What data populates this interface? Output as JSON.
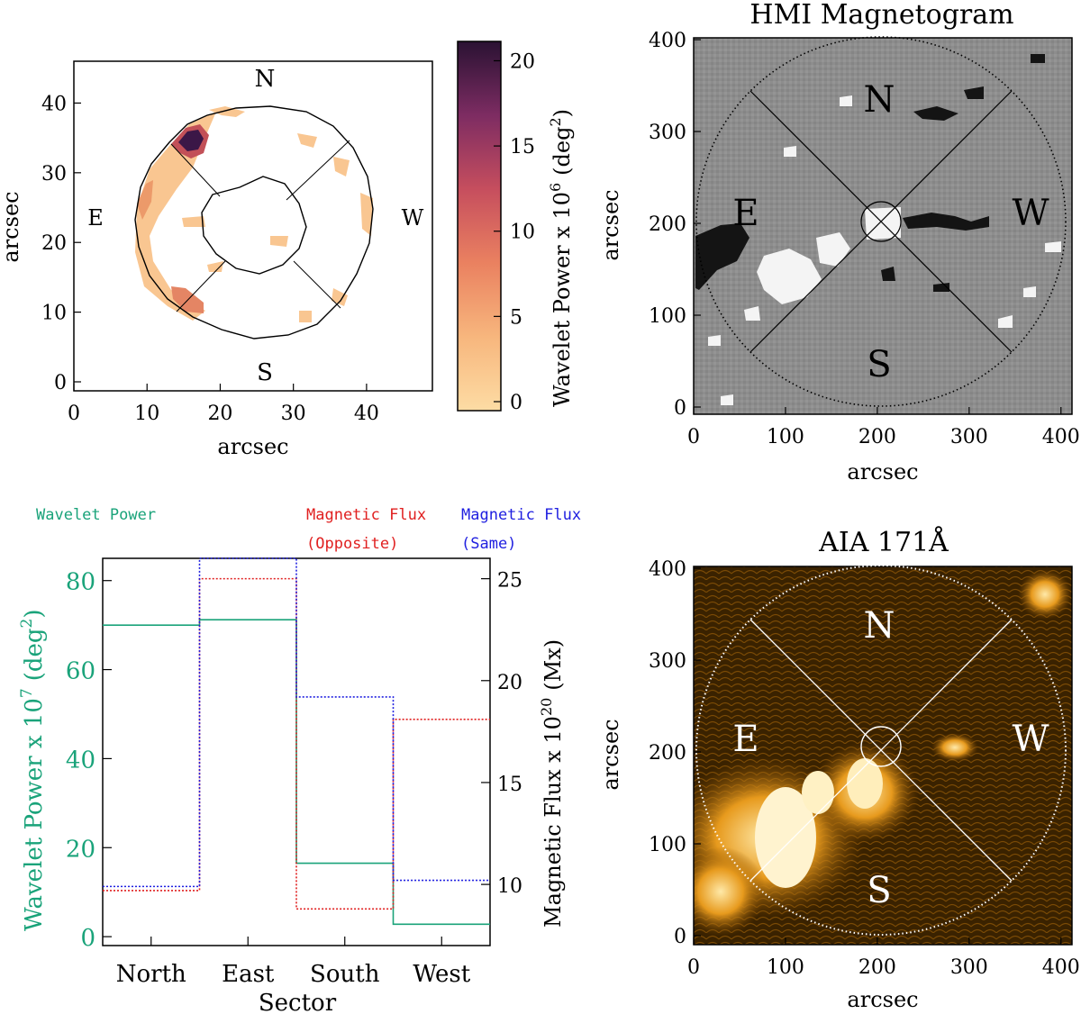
{
  "colors": {
    "wavelet": "#1aa37a",
    "flux_opposite": "#e02020",
    "flux_same": "#2020e0",
    "aia_dark": "#2a1800",
    "aia_bright": "#ffd27a"
  },
  "panel_a": {
    "xlabel": "arcsec",
    "ylabel": "arcsec",
    "x_ticks": [
      "0",
      "10",
      "20",
      "30",
      "40"
    ],
    "y_ticks": [
      "0",
      "10",
      "20",
      "30",
      "40"
    ],
    "compass": {
      "n": "N",
      "s": "S",
      "e": "E",
      "w": "W"
    },
    "colorbar_title": "Wavelet Power x 10",
    "colorbar_exp": "6",
    "colorbar_unit": "(deg",
    "colorbar_unit_exp": "2",
    "colorbar_unit_close": ")",
    "colorbar_ticks": [
      "0",
      "5",
      "10",
      "15",
      "20"
    ]
  },
  "panel_b": {
    "title": "HMI Magnetogram",
    "xlabel": "arcsec",
    "ylabel": "arcsec",
    "x_ticks": [
      "0",
      "100",
      "200",
      "300",
      "400"
    ],
    "y_ticks": [
      "0",
      "100",
      "200",
      "300",
      "400"
    ],
    "compass": {
      "n": "N",
      "s": "S",
      "e": "E",
      "w": "W"
    }
  },
  "panel_d": {
    "title": "AIA 171Å",
    "xlabel": "arcsec",
    "ylabel": "arcsec",
    "x_ticks": [
      "0",
      "100",
      "200",
      "300",
      "400"
    ],
    "y_ticks": [
      "0",
      "100",
      "200",
      "300",
      "400"
    ],
    "compass": {
      "n": "N",
      "s": "S",
      "e": "E",
      "w": "W"
    }
  },
  "chart_data": {
    "type": "line",
    "legend": {
      "wavelet": "Wavelet Power",
      "opposite_1": "Magnetic Flux",
      "opposite_2": "(Opposite)",
      "same_1": "Magnetic Flux",
      "same_2": "(Same)"
    },
    "xlabel": "Sector",
    "categories": [
      "North",
      "East",
      "South",
      "West"
    ],
    "ylabel_left": "Wavelet Power x 10",
    "ylabel_left_exp": "7",
    "ylabel_left_unit": "(deg",
    "ylabel_left_unit_exp": "2",
    "ylabel_left_close": ")",
    "ylabel_right": "Magnetic Flux x 10",
    "ylabel_right_exp": "20",
    "ylabel_right_unit": "(Mx)",
    "ylim_left": [
      -2,
      85
    ],
    "ylim_right": [
      7,
      26
    ],
    "left_ticks": [
      "0",
      "20",
      "40",
      "60",
      "80"
    ],
    "right_ticks": [
      "10",
      "15",
      "20",
      "25"
    ],
    "series": [
      {
        "name": "Wavelet Power",
        "axis": "left",
        "values": [
          70,
          71.2,
          16.5,
          2.8
        ]
      },
      {
        "name": "Magnetic Flux (Opposite)",
        "axis": "right",
        "values": [
          9.7,
          25,
          8.8,
          18.1
        ]
      },
      {
        "name": "Magnetic Flux (Same)",
        "axis": "right",
        "values": [
          9.9,
          27,
          19.2,
          10.2
        ]
      }
    ]
  }
}
